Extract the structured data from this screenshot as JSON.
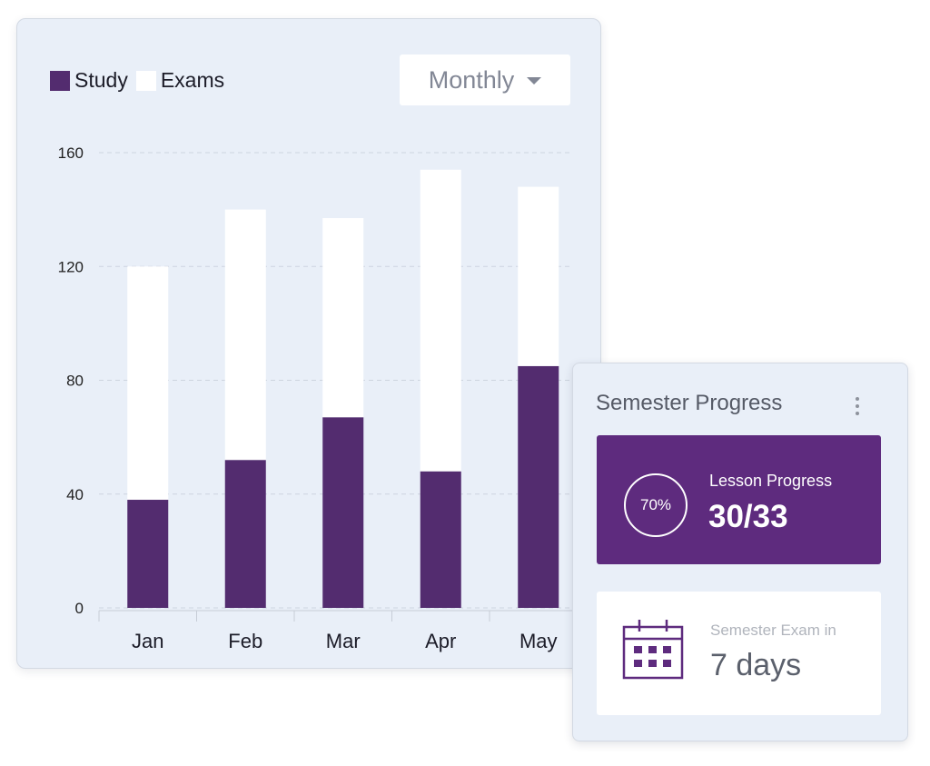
{
  "chart": {
    "dropdown": {
      "label": "Monthly",
      "icon": "chevron-down-icon"
    }
  },
  "chart_data": {
    "type": "bar",
    "stacked": true,
    "categories": [
      "Jan",
      "Feb",
      "Mar",
      "Apr",
      "May"
    ],
    "series": [
      {
        "name": "Study",
        "color": "#532c6f",
        "values": [
          38,
          52,
          67,
          48,
          85
        ]
      },
      {
        "name": "Exams",
        "color": "#ffffff",
        "values": [
          82,
          88,
          70,
          106,
          63
        ]
      }
    ],
    "yticks": [
      0,
      40,
      80,
      120,
      160
    ],
    "ylim": [
      0,
      160
    ],
    "grid": "horizontal-dashed",
    "legend": "top-left",
    "title": "",
    "xlabel": "",
    "ylabel": ""
  },
  "progress_card": {
    "title": "Semester Progress",
    "menu_icon": "kebab-menu-icon",
    "lesson": {
      "percent_label": "70%",
      "label": "Lesson Progress",
      "value": "30/33",
      "color": "#5e2b7e"
    },
    "exam": {
      "icon": "calendar-icon",
      "label": "Semester Exam in",
      "value": "7 days"
    }
  }
}
